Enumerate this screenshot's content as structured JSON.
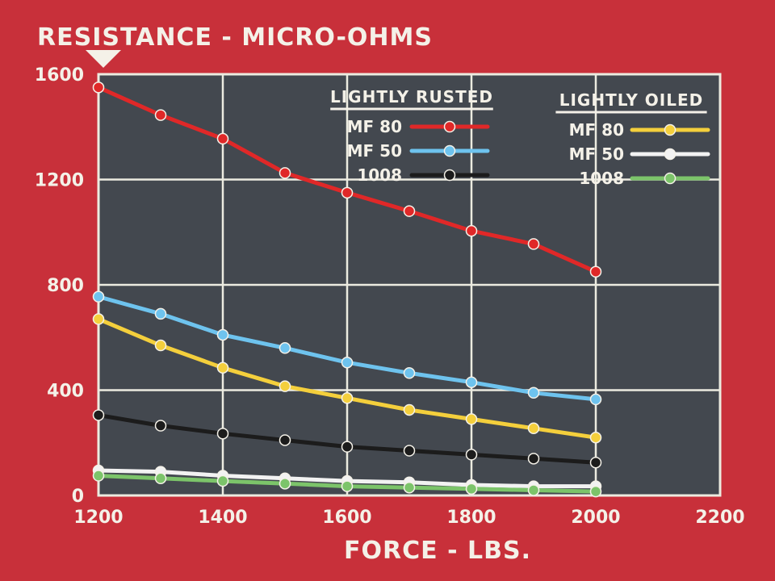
{
  "chart_data": {
    "type": "line",
    "title": "",
    "ylabel": "RESISTANCE - MICRO-OHMS",
    "xlabel": "FORCE - LBS.",
    "x": [
      1200,
      1300,
      1400,
      1500,
      1600,
      1700,
      1800,
      1900,
      2000
    ],
    "xlim": [
      1200,
      2200
    ],
    "ylim": [
      0,
      1600
    ],
    "xticks": [
      1200,
      1400,
      1600,
      1800,
      2000,
      2200
    ],
    "yticks": [
      0,
      400,
      800,
      1200,
      1600
    ],
    "grid": true,
    "legend_groups": [
      {
        "title": "LIGHTLY RUSTED",
        "series": [
          {
            "name": "MF 80",
            "color": "#e02828",
            "values": [
              1550,
              1445,
              1355,
              1225,
              1150,
              1080,
              1005,
              955,
              850
            ]
          },
          {
            "name": "MF 50",
            "color": "#6ec3ee",
            "values": [
              755,
              690,
              610,
              560,
              505,
              465,
              430,
              390,
              365
            ]
          },
          {
            "name": "1008",
            "color": "#1c1c1c",
            "values": [
              305,
              265,
              235,
              210,
              185,
              170,
              155,
              140,
              125
            ]
          }
        ]
      },
      {
        "title": "LIGHTLY OILED",
        "series": [
          {
            "name": "MF 80",
            "color": "#f4cf3c",
            "values": [
              670,
              570,
              485,
              415,
              370,
              325,
              290,
              255,
              220
            ]
          },
          {
            "name": "MF 50",
            "color": "#f2f2f2",
            "values": [
              95,
              90,
              75,
              65,
              55,
              50,
              40,
              35,
              35
            ]
          },
          {
            "name": "1008",
            "color": "#7cc46a",
            "values": [
              75,
              65,
              55,
              45,
              35,
              30,
              25,
              20,
              15
            ]
          }
        ]
      }
    ]
  }
}
